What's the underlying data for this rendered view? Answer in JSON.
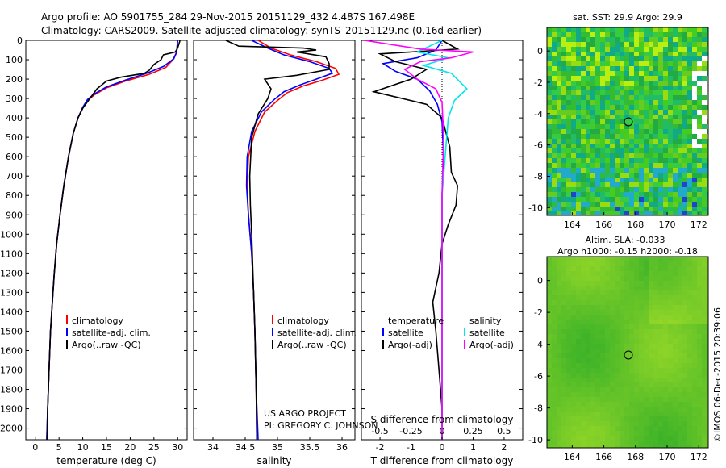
{
  "header": {
    "line1": "Argo profile: AO 5901755_284 29-Nov-2015 20151129_432 4.487S 167.498E",
    "line2": "Climatology: CARS2009. Satellite-adjusted climatology: synTS_20151129.nc (0.16d earlier)"
  },
  "credit": {
    "project": "US ARGO PROJECT",
    "pi": "PI: GREGORY C. JOHNSON",
    "stamp": "©IMOS 06-Dec-2015 20:39:06"
  },
  "colors": {
    "climatology": "#ff0000",
    "satellite": "#0000ff",
    "argo": "#000000",
    "sal_satellite": "#00e5ee",
    "sal_argo": "#ff00ff"
  },
  "chart_data": [
    {
      "type": "line",
      "id": "temperature",
      "xlabel": "temperature (deg C)",
      "xlim": [
        -2,
        32
      ],
      "ylim": [
        2060,
        0
      ],
      "xticks": [
        0,
        5,
        10,
        15,
        20,
        25,
        30
      ],
      "yticks": [
        0,
        100,
        200,
        300,
        400,
        500,
        600,
        700,
        800,
        900,
        1000,
        1100,
        1200,
        1300,
        1400,
        1500,
        1600,
        1700,
        1800,
        1900,
        2000
      ],
      "legend": [
        "climatology",
        "satellite-adj. clim.",
        "Argo(..raw -QC)"
      ],
      "series": [
        {
          "name": "climatology",
          "color": "#ff0000",
          "points": [
            [
              30,
              0
            ],
            [
              29.8,
              60
            ],
            [
              29,
              100
            ],
            [
              27.5,
              140
            ],
            [
              24,
              175
            ],
            [
              19,
              210
            ],
            [
              15,
              245
            ],
            [
              12.5,
              280
            ],
            [
              11,
              310
            ],
            [
              10,
              350
            ],
            [
              9,
              400
            ],
            [
              8,
              480
            ],
            [
              7,
              600
            ],
            [
              6,
              750
            ],
            [
              5.2,
              900
            ],
            [
              4.5,
              1050
            ],
            [
              4,
              1200
            ],
            [
              3.6,
              1350
            ],
            [
              3.2,
              1500
            ],
            [
              2.9,
              1700
            ],
            [
              2.6,
              1900
            ],
            [
              2.4,
              2060
            ]
          ]
        },
        {
          "name": "satellite-adj. clim.",
          "color": "#0000ff",
          "points": [
            [
              30,
              0
            ],
            [
              29.8,
              60
            ],
            [
              29.2,
              95
            ],
            [
              27,
              135
            ],
            [
              23.5,
              170
            ],
            [
              19,
              205
            ],
            [
              15,
              240
            ],
            [
              12.5,
              275
            ],
            [
              11,
              305
            ],
            [
              10,
              345
            ],
            [
              9,
              400
            ],
            [
              8,
              480
            ],
            [
              7,
              600
            ],
            [
              6,
              750
            ],
            [
              5.2,
              900
            ],
            [
              4.5,
              1050
            ],
            [
              4,
              1200
            ],
            [
              3.6,
              1350
            ],
            [
              3.2,
              1500
            ],
            [
              2.9,
              1700
            ],
            [
              2.6,
              1900
            ],
            [
              2.4,
              2060
            ]
          ]
        },
        {
          "name": "Argo(..raw -QC)",
          "color": "#000000",
          "points": [
            [
              30.5,
              0
            ],
            [
              30,
              40
            ],
            [
              29.5,
              60
            ],
            [
              27,
              75
            ],
            [
              26.5,
              100
            ],
            [
              25,
              125
            ],
            [
              24,
              155
            ],
            [
              23,
              170
            ],
            [
              18,
              190
            ],
            [
              15,
              210
            ],
            [
              13,
              250
            ],
            [
              11.5,
              300
            ],
            [
              10,
              350
            ],
            [
              9,
              400
            ],
            [
              8,
              480
            ],
            [
              7,
              600
            ],
            [
              6,
              750
            ],
            [
              5.2,
              900
            ],
            [
              4.5,
              1050
            ],
            [
              4,
              1200
            ],
            [
              3.6,
              1350
            ],
            [
              3.2,
              1500
            ],
            [
              2.9,
              1700
            ],
            [
              2.6,
              1900
            ],
            [
              2.5,
              2060
            ]
          ]
        }
      ]
    },
    {
      "type": "line",
      "id": "salinity",
      "xlabel": "salinity",
      "xlim": [
        33.7,
        36.2
      ],
      "ylim": [
        2060,
        0
      ],
      "xticks": [
        34,
        34.5,
        35,
        35.5,
        36
      ],
      "legend": [
        "climatology",
        "satellite-adj. clim.",
        "Argo(..raw -QC)"
      ],
      "series": [
        {
          "name": "climatology",
          "color": "#ff0000",
          "points": [
            [
              34.7,
              0
            ],
            [
              34.9,
              40
            ],
            [
              35.2,
              75
            ],
            [
              35.6,
              110
            ],
            [
              35.9,
              145
            ],
            [
              35.95,
              175
            ],
            [
              35.7,
              205
            ],
            [
              35.4,
              235
            ],
            [
              35.15,
              270
            ],
            [
              35,
              310
            ],
            [
              34.8,
              370
            ],
            [
              34.65,
              470
            ],
            [
              34.55,
              600
            ],
            [
              34.53,
              750
            ],
            [
              34.55,
              900
            ],
            [
              34.6,
              1100
            ],
            [
              34.63,
              1300
            ],
            [
              34.65,
              1500
            ],
            [
              34.67,
              1800
            ],
            [
              34.68,
              2060
            ]
          ]
        },
        {
          "name": "satellite-adj. clim.",
          "color": "#0000ff",
          "points": [
            [
              34.6,
              0
            ],
            [
              34.85,
              40
            ],
            [
              35.1,
              75
            ],
            [
              35.5,
              110
            ],
            [
              35.8,
              145
            ],
            [
              35.85,
              170
            ],
            [
              35.6,
              200
            ],
            [
              35.35,
              230
            ],
            [
              35.1,
              265
            ],
            [
              34.95,
              305
            ],
            [
              34.75,
              370
            ],
            [
              34.6,
              470
            ],
            [
              34.53,
              600
            ],
            [
              34.52,
              750
            ],
            [
              34.55,
              900
            ],
            [
              34.6,
              1100
            ],
            [
              34.63,
              1300
            ],
            [
              34.65,
              1500
            ],
            [
              34.67,
              1800
            ],
            [
              34.7,
              2060
            ]
          ]
        },
        {
          "name": "Argo(..raw -QC)",
          "color": "#000000",
          "points": [
            [
              34.2,
              0
            ],
            [
              34.4,
              30
            ],
            [
              35.4,
              40
            ],
            [
              35.6,
              50
            ],
            [
              35.3,
              60
            ],
            [
              35.75,
              85
            ],
            [
              35.8,
              120
            ],
            [
              35.8,
              150
            ],
            [
              35.3,
              180
            ],
            [
              34.8,
              200
            ],
            [
              34.9,
              250
            ],
            [
              34.85,
              300
            ],
            [
              34.7,
              380
            ],
            [
              34.6,
              500
            ],
            [
              34.57,
              700
            ],
            [
              34.58,
              850
            ],
            [
              34.6,
              1000
            ],
            [
              34.62,
              1200
            ],
            [
              34.65,
              1500
            ],
            [
              34.67,
              1800
            ],
            [
              34.68,
              2060
            ]
          ]
        }
      ]
    },
    {
      "type": "line",
      "id": "difference",
      "xlabel_temp": "T difference from climatology",
      "xlabel_sal": "S difference from climatology",
      "xlim": [
        -2.6,
        2.6
      ],
      "ylim": [
        2060,
        0
      ],
      "xticks_temp": [
        -2,
        -1,
        0,
        1,
        2
      ],
      "xticks_sal": [
        -0.5,
        -0.25,
        0,
        0.25,
        0.5
      ],
      "legend_temp": {
        "title": "temperature",
        "items": [
          "satellite",
          "Argo(-adj)"
        ]
      },
      "legend_sal": {
        "title": "salinity",
        "items": [
          "satellite",
          "Argo(-adj)"
        ]
      },
      "series": [
        {
          "name": "T satellite",
          "color": "#0000ff",
          "points": [
            [
              0,
              0
            ],
            [
              -0.2,
              50
            ],
            [
              -0.8,
              90
            ],
            [
              -1.9,
              120
            ],
            [
              -1.5,
              160
            ],
            [
              -0.8,
              200
            ],
            [
              -0.4,
              260
            ],
            [
              -0.15,
              330
            ],
            [
              0,
              420
            ],
            [
              0.05,
              600
            ],
            [
              0,
              800
            ],
            [
              0,
              1200
            ],
            [
              0,
              1600
            ],
            [
              0,
              2060
            ]
          ]
        },
        {
          "name": "T Argo(-adj)",
          "color": "#000000",
          "points": [
            [
              0,
              0
            ],
            [
              0.5,
              45
            ],
            [
              -2,
              70
            ],
            [
              -1.5,
              110
            ],
            [
              -0.5,
              150
            ],
            [
              -1,
              200
            ],
            [
              -2.2,
              265
            ],
            [
              -0.5,
              330
            ],
            [
              0,
              400
            ],
            [
              0.25,
              550
            ],
            [
              0.3,
              680
            ],
            [
              0.5,
              750
            ],
            [
              0.45,
              850
            ],
            [
              0.2,
              950
            ],
            [
              0,
              1050
            ],
            [
              -0.1,
              1200
            ],
            [
              -0.3,
              1350
            ],
            [
              -0.2,
              1500
            ],
            [
              -0.1,
              1700
            ],
            [
              0,
              1900
            ],
            [
              0,
              2060
            ]
          ]
        },
        {
          "name": "S satellite",
          "color": "#00e5ee",
          "points": [
            [
              0,
              0
            ],
            [
              -0.8,
              60
            ],
            [
              0.2,
              90
            ],
            [
              -0.6,
              130
            ],
            [
              0.3,
              170
            ],
            [
              0.8,
              250
            ],
            [
              0.4,
              310
            ],
            [
              0.2,
              400
            ],
            [
              0.1,
              600
            ],
            [
              0,
              800
            ],
            [
              0,
              1200
            ],
            [
              0,
              1600
            ],
            [
              0,
              2060
            ]
          ]
        },
        {
          "name": "S Argo(-adj)",
          "color": "#ff00ff",
          "points": [
            [
              -2.5,
              0
            ],
            [
              -0.7,
              45
            ],
            [
              1,
              60
            ],
            [
              0.3,
              90
            ],
            [
              -0.7,
              110
            ],
            [
              -1.2,
              150
            ],
            [
              -0.8,
              200
            ],
            [
              -0.2,
              250
            ],
            [
              0,
              320
            ],
            [
              0.05,
              500
            ],
            [
              0,
              800
            ],
            [
              0,
              1200
            ],
            [
              0,
              1600
            ],
            [
              0,
              2060
            ]
          ]
        }
      ]
    }
  ],
  "maps": {
    "sst": {
      "title": "sat. SST: 29.9 Argo: 29.9",
      "xticks": [
        164,
        166,
        168,
        170,
        172
      ],
      "yticks": [
        0,
        -2,
        -4,
        -6,
        -8,
        -10
      ]
    },
    "sla": {
      "title1": "Altim. SLA: -0.033",
      "title2": "Argo h1000: -0.15 h2000: -0.18",
      "xticks": [
        164,
        166,
        168,
        170,
        172
      ],
      "yticks": [
        0,
        -2,
        -4,
        -6,
        -8,
        -10
      ]
    }
  }
}
